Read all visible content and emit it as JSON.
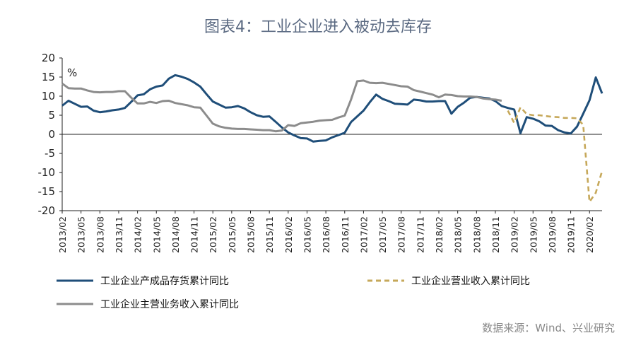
{
  "title": "图表4：工业企业进入被动去库存",
  "source": "数据来源：Wind、兴业研究",
  "chart_data": {
    "type": "line",
    "unit_label": "%",
    "ylim": [
      -20,
      20
    ],
    "yticks": [
      20,
      15,
      10,
      5,
      0,
      -5,
      -10,
      -15,
      -20
    ],
    "x_start": "2013/02",
    "x_end": "2020/04",
    "xtick_labels": [
      "2013/02",
      "2013/05",
      "2013/08",
      "2013/11",
      "2014/02",
      "2014/05",
      "2014/08",
      "2014/11",
      "2015/02",
      "2015/05",
      "2015/08",
      "2015/11",
      "2016/02",
      "2016/05",
      "2016/08",
      "2016/11",
      "2017/02",
      "2017/05",
      "2017/08",
      "2017/11",
      "2018/02",
      "2018/05",
      "2018/08",
      "2018/11",
      "2019/02",
      "2019/05",
      "2019/08",
      "2019/11",
      "2020/02"
    ],
    "grid": false,
    "legend_position": "bottom",
    "series": [
      {
        "name": "工业企业产成品存货累计同比",
        "color": "#1f4e79",
        "style": "solid",
        "points": [
          [
            "2013/02",
            7.5
          ],
          [
            "2013/03",
            8.8
          ],
          [
            "2013/04",
            8.0
          ],
          [
            "2013/05",
            7.2
          ],
          [
            "2013/06",
            7.3
          ],
          [
            "2013/07",
            6.2
          ],
          [
            "2013/08",
            5.8
          ],
          [
            "2013/09",
            6.0
          ],
          [
            "2013/10",
            6.3
          ],
          [
            "2013/11",
            6.5
          ],
          [
            "2013/12",
            6.9
          ],
          [
            "2014/01",
            8.5
          ],
          [
            "2014/02",
            10.2
          ],
          [
            "2014/03",
            10.5
          ],
          [
            "2014/04",
            11.8
          ],
          [
            "2014/05",
            12.5
          ],
          [
            "2014/06",
            12.8
          ],
          [
            "2014/07",
            14.6
          ],
          [
            "2014/08",
            15.5
          ],
          [
            "2014/09",
            15.1
          ],
          [
            "2014/10",
            14.5
          ],
          [
            "2014/11",
            13.6
          ],
          [
            "2014/12",
            12.5
          ],
          [
            "2015/01",
            10.5
          ],
          [
            "2015/02",
            8.6
          ],
          [
            "2015/03",
            7.8
          ],
          [
            "2015/04",
            7.0
          ],
          [
            "2015/05",
            7.1
          ],
          [
            "2015/06",
            7.4
          ],
          [
            "2015/07",
            6.8
          ],
          [
            "2015/08",
            5.8
          ],
          [
            "2015/09",
            5.0
          ],
          [
            "2015/10",
            4.6
          ],
          [
            "2015/11",
            4.7
          ],
          [
            "2015/12",
            3.3
          ],
          [
            "2016/01",
            1.8
          ],
          [
            "2016/02",
            0.5
          ],
          [
            "2016/03",
            -0.3
          ],
          [
            "2016/04",
            -1.0
          ],
          [
            "2016/05",
            -1.1
          ],
          [
            "2016/06",
            -1.9
          ],
          [
            "2016/07",
            -1.7
          ],
          [
            "2016/08",
            -1.6
          ],
          [
            "2016/09",
            -0.8
          ],
          [
            "2016/10",
            -0.2
          ],
          [
            "2016/11",
            0.4
          ],
          [
            "2016/12",
            3.2
          ],
          [
            "2017/01",
            4.7
          ],
          [
            "2017/02",
            6.2
          ],
          [
            "2017/03",
            8.4
          ],
          [
            "2017/04",
            10.4
          ],
          [
            "2017/05",
            9.3
          ],
          [
            "2017/06",
            8.7
          ],
          [
            "2017/07",
            8.0
          ],
          [
            "2017/08",
            7.9
          ],
          [
            "2017/09",
            7.8
          ],
          [
            "2017/10",
            9.1
          ],
          [
            "2017/11",
            8.9
          ],
          [
            "2017/12",
            8.6
          ],
          [
            "2018/01",
            8.6
          ],
          [
            "2018/02",
            8.7
          ],
          [
            "2018/03",
            8.7
          ],
          [
            "2018/04",
            5.4
          ],
          [
            "2018/05",
            7.2
          ],
          [
            "2018/06",
            8.3
          ],
          [
            "2018/07",
            9.6
          ],
          [
            "2018/08",
            9.8
          ],
          [
            "2018/09",
            9.6
          ],
          [
            "2018/10",
            9.4
          ],
          [
            "2018/11",
            8.7
          ],
          [
            "2018/12",
            7.4
          ],
          [
            "2019/01",
            6.9
          ],
          [
            "2019/02",
            6.5
          ],
          [
            "2019/03",
            0.3
          ],
          [
            "2019/04",
            4.5
          ],
          [
            "2019/05",
            4.1
          ],
          [
            "2019/06",
            3.4
          ],
          [
            "2019/07",
            2.3
          ],
          [
            "2019/08",
            2.2
          ],
          [
            "2019/09",
            1.1
          ],
          [
            "2019/10",
            0.5
          ],
          [
            "2019/11",
            0.2
          ],
          [
            "2019/12",
            2.0
          ],
          [
            "2020/01",
            5.4
          ],
          [
            "2020/02",
            8.9
          ],
          [
            "2020/03",
            14.9
          ],
          [
            "2020/04",
            10.7
          ]
        ]
      },
      {
        "name": "工业企业营业收入累计同比",
        "color": "#c6a85a",
        "style": "dashed",
        "points": [
          [
            "2019/01",
            6.2
          ],
          [
            "2019/02",
            3.0
          ],
          [
            "2019/03",
            7.1
          ],
          [
            "2019/04",
            5.3
          ],
          [
            "2019/05",
            5.0
          ],
          [
            "2019/06",
            5.0
          ],
          [
            "2019/07",
            4.8
          ],
          [
            "2019/08",
            4.6
          ],
          [
            "2019/09",
            4.5
          ],
          [
            "2019/10",
            4.3
          ],
          [
            "2019/11",
            4.3
          ],
          [
            "2019/12",
            4.2
          ],
          [
            "2020/01",
            2.5
          ],
          [
            "2020/02",
            -17.7
          ],
          [
            "2020/03",
            -15.3
          ],
          [
            "2020/04",
            -9.6
          ]
        ]
      },
      {
        "name": "工业企业主营业务收入累计同比",
        "color": "#8c8c8c",
        "style": "solid",
        "points": [
          [
            "2013/02",
            13.3
          ],
          [
            "2013/03",
            12.1
          ],
          [
            "2013/04",
            12.0
          ],
          [
            "2013/05",
            12.0
          ],
          [
            "2013/06",
            11.5
          ],
          [
            "2013/07",
            11.1
          ],
          [
            "2013/08",
            11.0
          ],
          [
            "2013/09",
            11.1
          ],
          [
            "2013/10",
            11.1
          ],
          [
            "2013/11",
            11.3
          ],
          [
            "2013/12",
            11.3
          ],
          [
            "2014/01",
            9.6
          ],
          [
            "2014/02",
            8.1
          ],
          [
            "2014/03",
            8.1
          ],
          [
            "2014/04",
            8.5
          ],
          [
            "2014/05",
            8.2
          ],
          [
            "2014/06",
            8.7
          ],
          [
            "2014/07",
            8.8
          ],
          [
            "2014/08",
            8.2
          ],
          [
            "2014/09",
            7.9
          ],
          [
            "2014/10",
            7.6
          ],
          [
            "2014/11",
            7.1
          ],
          [
            "2014/12",
            7.0
          ],
          [
            "2015/01",
            4.9
          ],
          [
            "2015/02",
            2.8
          ],
          [
            "2015/03",
            2.1
          ],
          [
            "2015/04",
            1.7
          ],
          [
            "2015/05",
            1.5
          ],
          [
            "2015/06",
            1.4
          ],
          [
            "2015/07",
            1.4
          ],
          [
            "2015/08",
            1.3
          ],
          [
            "2015/09",
            1.2
          ],
          [
            "2015/10",
            1.1
          ],
          [
            "2015/11",
            1.1
          ],
          [
            "2015/12",
            0.8
          ],
          [
            "2016/01",
            1.0
          ],
          [
            "2016/02",
            2.4
          ],
          [
            "2016/03",
            2.2
          ],
          [
            "2016/04",
            2.9
          ],
          [
            "2016/05",
            3.1
          ],
          [
            "2016/06",
            3.3
          ],
          [
            "2016/07",
            3.6
          ],
          [
            "2016/08",
            3.7
          ],
          [
            "2016/09",
            3.8
          ],
          [
            "2016/10",
            4.4
          ],
          [
            "2016/11",
            4.9
          ],
          [
            "2016/12",
            9.1
          ],
          [
            "2017/01",
            13.9
          ],
          [
            "2017/02",
            14.1
          ],
          [
            "2017/03",
            13.5
          ],
          [
            "2017/04",
            13.4
          ],
          [
            "2017/05",
            13.5
          ],
          [
            "2017/06",
            13.2
          ],
          [
            "2017/07",
            12.9
          ],
          [
            "2017/08",
            12.6
          ],
          [
            "2017/09",
            12.5
          ],
          [
            "2017/10",
            11.6
          ],
          [
            "2017/11",
            11.2
          ],
          [
            "2017/12",
            10.8
          ],
          [
            "2018/01",
            10.4
          ],
          [
            "2018/02",
            9.7
          ],
          [
            "2018/03",
            10.4
          ],
          [
            "2018/04",
            10.3
          ],
          [
            "2018/05",
            10.0
          ],
          [
            "2018/06",
            9.9
          ],
          [
            "2018/07",
            9.9
          ],
          [
            "2018/08",
            9.8
          ],
          [
            "2018/09",
            9.4
          ],
          [
            "2018/10",
            9.2
          ],
          [
            "2018/11",
            9.1
          ],
          [
            "2018/12",
            8.8
          ]
        ]
      }
    ]
  }
}
